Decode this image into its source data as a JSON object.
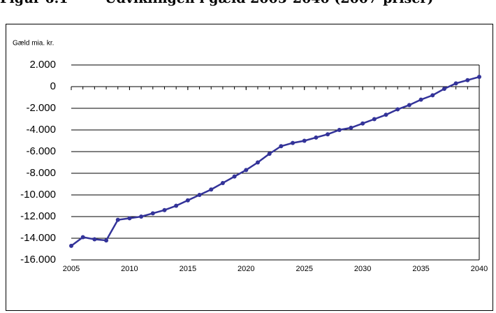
{
  "chart_data": {
    "type": "line",
    "figure_label": "Figur 6.1",
    "title": "Udviklingen i gæld 2005-2040 (2007-priser)",
    "y_label": "Gæld mia. kr.",
    "x": [
      2005,
      2006,
      2007,
      2008,
      2009,
      2010,
      2011,
      2012,
      2013,
      2014,
      2015,
      2016,
      2017,
      2018,
      2019,
      2020,
      2021,
      2022,
      2023,
      2024,
      2025,
      2026,
      2027,
      2028,
      2029,
      2030,
      2031,
      2032,
      2033,
      2034,
      2035,
      2036,
      2037,
      2038,
      2039,
      2040
    ],
    "series": [
      {
        "color": "#333399",
        "values": [
          -14700,
          -13900,
          -14100,
          -14200,
          -12300,
          -12150,
          -12000,
          -11700,
          -11400,
          -11000,
          -10500,
          -10000,
          -9500,
          -8900,
          -8300,
          -7700,
          -7000,
          -6200,
          -5500,
          -5200,
          -5000,
          -4700,
          -4400,
          -4000,
          -3800,
          -3400,
          -3000,
          -2600,
          -2100,
          -1700,
          -1200,
          -800,
          -200,
          300,
          600,
          900
        ]
      }
    ],
    "xlim": [
      2005,
      2040
    ],
    "xticks": [
      2005,
      2010,
      2015,
      2020,
      2025,
      2030,
      2035,
      2040
    ],
    "ylim": [
      -16000,
      2000
    ],
    "yticks": [
      {
        "value": 2000,
        "label": "2.000"
      },
      0,
      {
        "value": -2000,
        "label": "-2.000"
      },
      {
        "value": -4000,
        "label": "-4.000"
      },
      {
        "value": -6000,
        "label": "-6.000"
      },
      {
        "value": -8000,
        "label": "-8.000"
      },
      {
        "value": -10000,
        "label": "-10.000"
      },
      {
        "value": -12000,
        "label": "-12.000"
      },
      {
        "value": -14000,
        "label": "-14.000"
      },
      {
        "value": -16000,
        "label": "-16.000"
      }
    ],
    "grid": true
  }
}
